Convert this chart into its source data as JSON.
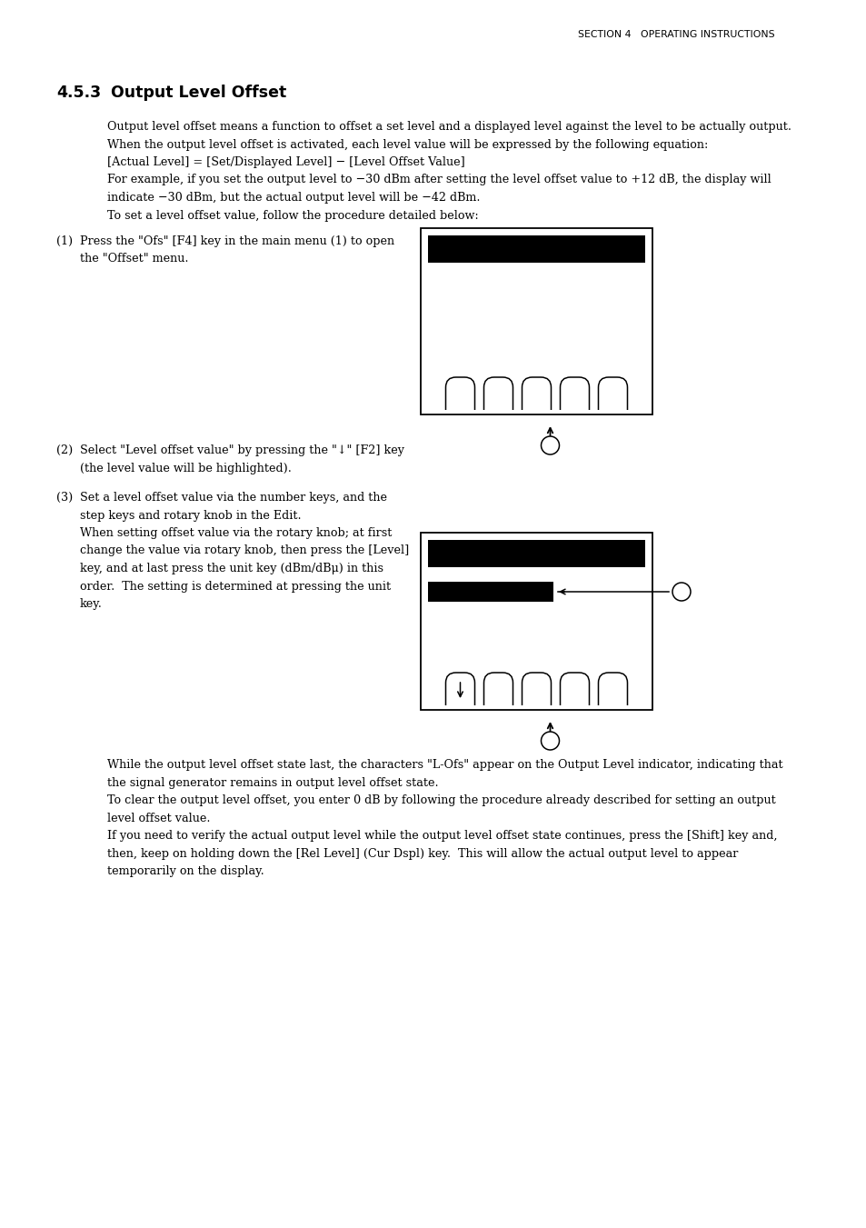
{
  "bg_color": "#ffffff",
  "header_text": "SECTION 4   OPERATING INSTRUCTIONS",
  "section_num": "4.5.3",
  "section_title": "Output Level Offset",
  "para1": "Output level offset means a function to offset a set level and a displayed level against the level to be actually output.",
  "para2": "When the output level offset is activated, each level value will be expressed by the following equation:",
  "para3": "[Actual Level] = [Set/Displayed Level] − [Level Offset Value]",
  "para4a": "For example, if you set the output level to −30 dBm after setting the level offset value to +12 dB, the display will",
  "para4b": "indicate −30 dBm, but the actual output level will be −42 dBm.",
  "para5": "To set a level offset value, follow the procedure detailed below:",
  "step1_num": "(1)",
  "step1_line1": "Press the \"Ofs\" [F4] key in the main menu (1) to open",
  "step1_line2": "the \"Offset\" menu.",
  "step2_num": "(2)",
  "step2_line1": "Select \"Level offset value\" by pressing the \"↓\" [F2] key",
  "step2_line2": "(the level value will be highlighted).",
  "step3_num": "(3)",
  "step3_lines": [
    "Set a level offset value via the number keys, and the",
    "step keys and rotary knob in the Edit.",
    "When setting offset value via the rotary knob; at first",
    "change the value via rotary knob, then press the [Level]",
    "key, and at last press the unit key (dBm/dBμ) in this",
    "order.  The setting is determined at pressing the unit",
    "key."
  ],
  "after1a": "While the output level offset state last, the characters \"L-Ofs\" appear on the Output Level indicator, indicating that",
  "after1b": "the signal generator remains in output level offset state.",
  "after2a": "To clear the output level offset, you enter 0 dB by following the procedure already described for setting an output",
  "after2b": "level offset value.",
  "after3a": "If you need to verify the actual output level while the output level offset state continues, press the [Shift] key and,",
  "after3b": "then, keep on holding down the [Rel Level] (Cur Dspl) key.  This will allow the actual output level to appear",
  "after3c": "temporarily on the display."
}
